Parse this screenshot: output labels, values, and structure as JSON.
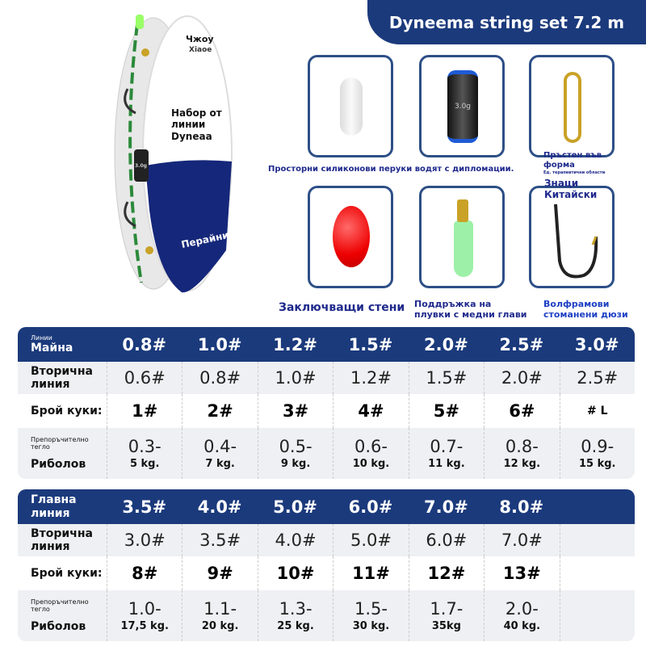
{
  "title": "Dyneema string set 7.2 m",
  "spool": {
    "brand": "Чжоу",
    "brand_sub": "Xiaoe",
    "label": "Набор от линии Dyneaa",
    "band_text": "Перайни",
    "weight_mark": "3.0g"
  },
  "accessories": [
    {
      "name": "silicone-bead",
      "caption": "Просторни силиконови перуки водят с дипломации."
    },
    {
      "name": "sinker",
      "caption": "",
      "mark": "3.0g"
    },
    {
      "name": "swivel",
      "caption": "Пръстен във форма",
      "caption_small": "Ед. терапевтични области"
    },
    {
      "name": "float-bead",
      "caption": "Заключващи стени"
    },
    {
      "name": "float-holder",
      "caption": "Поддръжка на плувки с медни глави"
    },
    {
      "name": "hook",
      "caption": "Волфрамови стоманени дюзи",
      "overlay": "Знаци Китайски"
    }
  ],
  "tables": [
    {
      "header_small": "Линии",
      "header": "Майна",
      "cols": [
        "0.8#",
        "1.0#",
        "1.2#",
        "1.5#",
        "2.0#",
        "2.5#",
        "3.0#"
      ],
      "sub_label": "Вторична линия",
      "sub": [
        "0.6#",
        "0.8#",
        "1.0#",
        "1.2#",
        "1.5#",
        "2.0#",
        "2.5#"
      ],
      "hooks_label": "Брой куки:",
      "hooks": [
        "1#",
        "2#",
        "3#",
        "4#",
        "5#",
        "6#",
        "# L"
      ],
      "weight_small": "Препоръчително тегло",
      "weight_label": "Риболов",
      "w_low": [
        "0.3-",
        "0.4-",
        "0.5-",
        "0.6-",
        "0.7-",
        "0.8-",
        "0.9-"
      ],
      "w_high": [
        "5 kg.",
        "7 kg.",
        "9 kg.",
        "10 kg.",
        "11 kg.",
        "12 kg.",
        "15 kg."
      ]
    },
    {
      "header_small": "",
      "header": "Главна линия",
      "cols": [
        "3.5#",
        "4.0#",
        "5.0#",
        "6.0#",
        "7.0#",
        "8.0#",
        ""
      ],
      "sub_label": "Вторична линия",
      "sub": [
        "3.0#",
        "3.5#",
        "4.0#",
        "5.0#",
        "6.0#",
        "7.0#",
        ""
      ],
      "hooks_label": "Брой куки:",
      "hooks": [
        "8#",
        "9#",
        "10#",
        "11#",
        "12#",
        "13#",
        ""
      ],
      "weight_small": "Препоръчително тегло",
      "weight_label": "Риболов",
      "w_low": [
        "1.0-",
        "1.1-",
        "1.3-",
        "1.5-",
        "1.7-",
        "2.0-",
        ""
      ],
      "w_high": [
        "17,5 kg.",
        "20 kg.",
        "25 kg.",
        "30 kg.",
        "35kg",
        "40 kg.",
        ""
      ]
    }
  ]
}
